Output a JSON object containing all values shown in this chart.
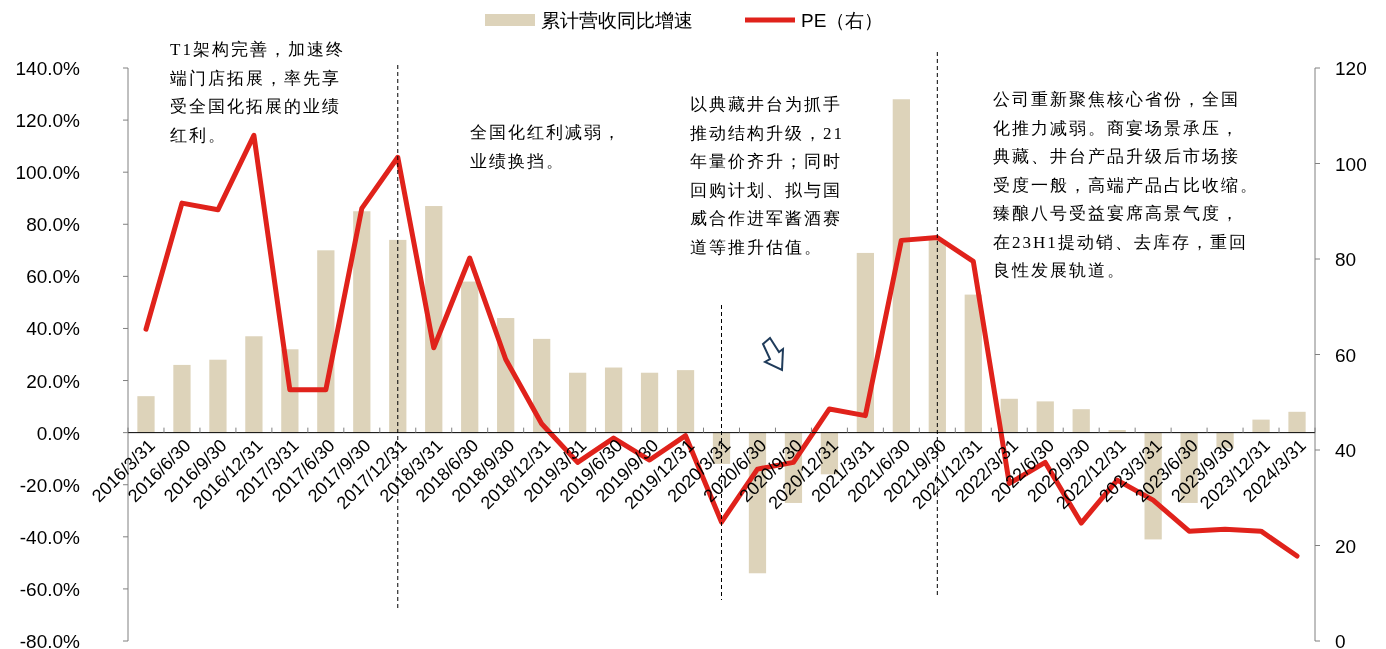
{
  "chart_data": {
    "type": "bar",
    "categories": [
      "2016/3/31",
      "2016/6/30",
      "2016/9/30",
      "2016/12/31",
      "2017/3/31",
      "2017/6/30",
      "2017/9/30",
      "2017/12/31",
      "2018/3/31",
      "2018/6/30",
      "2018/9/30",
      "2018/12/31",
      "2019/3/31",
      "2019/6/30",
      "2019/9/30",
      "2019/12/31",
      "2020/3/31",
      "2020/6/30",
      "2020/9/30",
      "2020/12/31",
      "2021/3/31",
      "2021/6/30",
      "2021/9/30",
      "2021/12/31",
      "2022/3/31",
      "2022/6/30",
      "2022/9/30",
      "2022/12/31",
      "2023/3/31",
      "2023/6/30",
      "2023/9/30",
      "2023/12/31",
      "2024/3/31"
    ],
    "series": [
      {
        "name": "累计营收同比增速",
        "color": "#ddd3ba",
        "values": [
          14,
          26,
          28,
          37,
          32,
          70,
          85,
          74,
          87,
          58,
          44,
          36,
          23,
          25,
          23,
          24,
          -12,
          -54,
          -27,
          -16,
          69,
          128,
          74,
          53,
          13,
          12,
          9,
          1,
          -41,
          -27,
          -6,
          5,
          8
        ]
      },
      {
        "name": "PE（右）",
        "type": "line",
        "axis": "y2",
        "color": "#e0221b",
        "values": [
          65.3,
          91.7,
          90.3,
          105.9,
          52.6,
          52.6,
          90.6,
          101.3,
          61.4,
          80.2,
          59,
          45.5,
          37.4,
          42.5,
          37.9,
          43,
          24.9,
          36,
          37.4,
          48.6,
          47.2,
          83.9,
          84.5,
          79.5,
          33,
          37.4,
          24.7,
          33.7,
          29.5,
          23,
          23.4,
          23,
          17.8
        ]
      }
    ],
    "ylim": [
      -80,
      140
    ],
    "yticks": [
      {
        "value": -80,
        "label": "-80.0%"
      },
      {
        "value": -60,
        "label": "-60.0%"
      },
      {
        "value": -40,
        "label": "-40.0%"
      },
      {
        "value": -20,
        "label": "-20.0%"
      },
      {
        "value": 0,
        "label": "0.0%"
      },
      {
        "value": 20,
        "label": "20.0%"
      },
      {
        "value": 40,
        "label": "40.0%"
      },
      {
        "value": 60,
        "label": "60.0%"
      },
      {
        "value": 80,
        "label": "80.0%"
      },
      {
        "value": 100,
        "label": "100.0%"
      },
      {
        "value": 120,
        "label": "120.0%"
      },
      {
        "value": 140,
        "label": "140.0%"
      }
    ],
    "y2lim": [
      0,
      120
    ],
    "y2ticks": [
      0,
      20,
      40,
      60,
      80,
      100,
      120
    ],
    "legend": "top",
    "ref_lines": [
      {
        "axis": "x",
        "value": "2017/12/31",
        "line_style": "dashed"
      },
      {
        "axis": "x",
        "value": "2020/3/31",
        "line_style": "dashed"
      },
      {
        "axis": "x",
        "value": "2021/9/30",
        "line_style": "dashed"
      }
    ],
    "annotations": [
      "T1架构完善，加速终端门店拓展，率先享受全国化拓展的业绩红利。",
      "全国化红利减弱，业绩换挡。",
      "以典藏井台为抓手推动结构升级，21年量价齐升；同时回购计划、拟与国威合作进军酱酒赛道等推升估值。",
      "公司重新聚焦核心省份，全国化推力减弱。商宴场景承压，典藏、井台产品升级后市场接受度一般，高端产品占比收缩。臻酿八号受益宴席高景气度，在23H1提动销、去库存，重回良性发展轨道。"
    ]
  }
}
